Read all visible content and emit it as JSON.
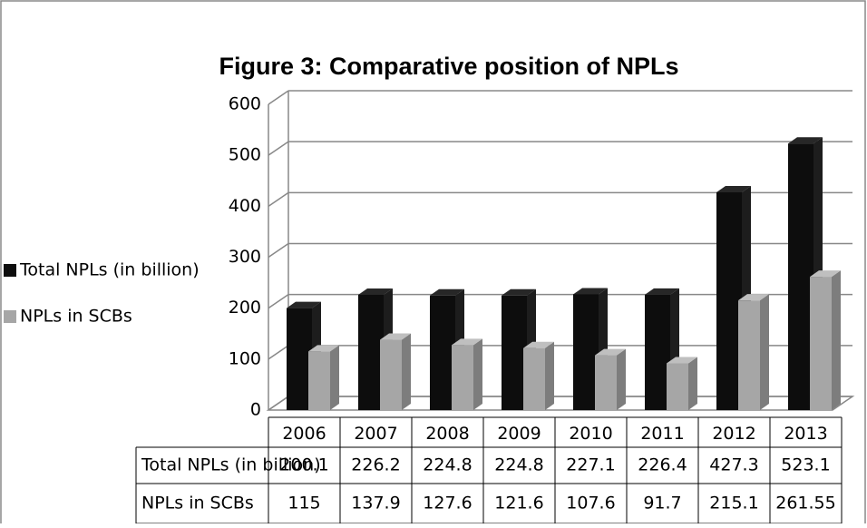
{
  "chart_data": {
    "type": "bar",
    "title": "Figure 3: Comparative position of NPLs",
    "categories": [
      "2006",
      "2007",
      "2008",
      "2009",
      "2010",
      "2011",
      "2012",
      "2013"
    ],
    "series": [
      {
        "name": "Total NPLs (in billion)",
        "color": "#0d0d0d",
        "values": [
          200.1,
          226.2,
          224.8,
          224.8,
          227.1,
          226.4,
          427.3,
          523.1
        ]
      },
      {
        "name": "NPLs in SCBs",
        "color": "#a6a6a6",
        "values": [
          115,
          137.9,
          127.6,
          121.6,
          107.6,
          91.7,
          215.1,
          261.55
        ]
      }
    ],
    "ylim": [
      0,
      600
    ],
    "yticks": [
      0,
      100,
      200,
      300,
      400,
      500,
      600
    ],
    "grid": true,
    "legend": "left"
  }
}
